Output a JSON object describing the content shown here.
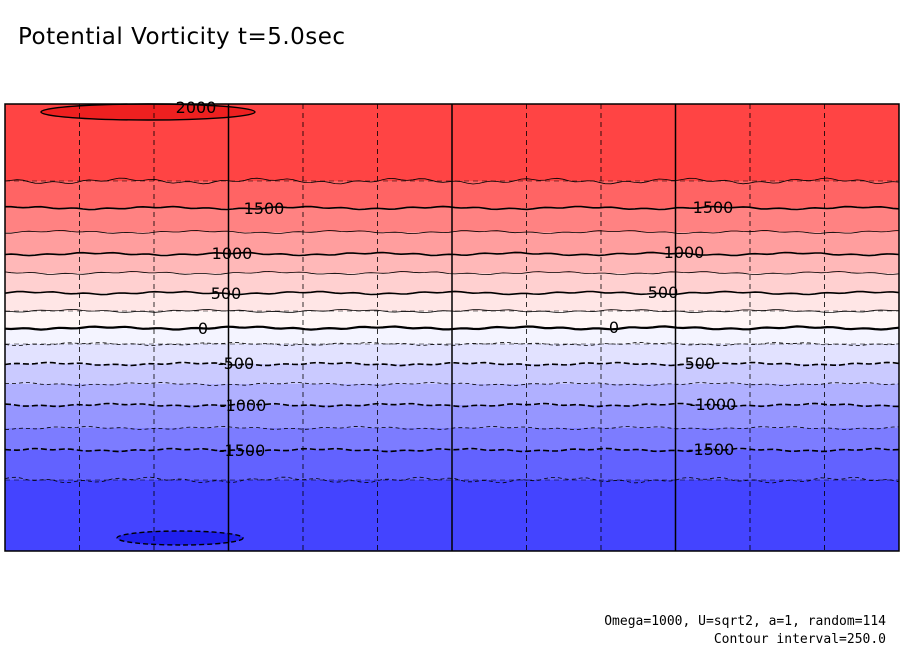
{
  "chart_data": {
    "type": "contour",
    "title": "Potential Vorticity t=5.0sec",
    "footnote_params": "Omega=1000, U=sqrt2, a=1, random=114",
    "footnote_interval": "Contour interval=250.0",
    "contour_interval": 250.0,
    "value_range": [
      -2000,
      2000
    ],
    "bands_top_to_bottom": [
      {
        "low": 1750,
        "high": 2250,
        "color": "#ff4444"
      },
      {
        "low": 1500,
        "high": 1750,
        "color": "#ff6464"
      },
      {
        "low": 1250,
        "high": 1500,
        "color": "#ff8282"
      },
      {
        "low": 1000,
        "high": 1250,
        "color": "#ff9e9e"
      },
      {
        "low": 750,
        "high": 1000,
        "color": "#ffb8b8"
      },
      {
        "low": 500,
        "high": 750,
        "color": "#ffd0d0"
      },
      {
        "low": 250,
        "high": 500,
        "color": "#ffe6e6"
      },
      {
        "low": 0,
        "high": 250,
        "color": "#fff6f6"
      },
      {
        "low": -250,
        "high": 0,
        "color": "#f4f4ff"
      },
      {
        "low": -500,
        "high": -250,
        "color": "#e2e2ff"
      },
      {
        "low": -750,
        "high": -500,
        "color": "#cacaff"
      },
      {
        "low": -1000,
        "high": -750,
        "color": "#b0b0ff"
      },
      {
        "low": -1250,
        "high": -1000,
        "color": "#9696ff"
      },
      {
        "low": -1500,
        "high": -1250,
        "color": "#7c7cff"
      },
      {
        "low": -1750,
        "high": -1500,
        "color": "#6262ff"
      },
      {
        "low": -2250,
        "high": -1750,
        "color": "#4444ff"
      }
    ],
    "contour_labels": [
      {
        "text": "2000",
        "value": 2000
      },
      {
        "text": "1500",
        "value": 1500
      },
      {
        "text": "1500",
        "value": 1500
      },
      {
        "text": "1000",
        "value": 1000
      },
      {
        "text": "1000",
        "value": 1000
      },
      {
        "text": "500",
        "value": 500
      },
      {
        "text": "500",
        "value": 500
      },
      {
        "text": "0",
        "value": 0
      },
      {
        "text": "0",
        "value": 0
      },
      {
        "text": "-500",
        "value": -500
      },
      {
        "text": "-500",
        "value": -500
      },
      {
        "text": "-1000",
        "value": -1000
      },
      {
        "text": "-1000",
        "value": -1000
      },
      {
        "text": "-1500",
        "value": -1500
      },
      {
        "text": "-1500",
        "value": -1500
      }
    ],
    "grid": true,
    "colors": {
      "positive": "#ff4444",
      "negative": "#4444ff",
      "zero": "#ffffff",
      "line": "#000000"
    }
  }
}
